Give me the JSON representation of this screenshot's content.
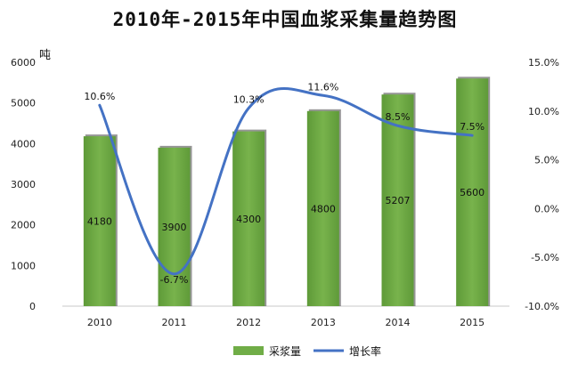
{
  "title": "2010年-2015年中国血浆采集量趋势图",
  "chart_data": {
    "type": "bar",
    "title": "2010年-2015年中国血浆采集量趋势图",
    "categories": [
      "2010",
      "2011",
      "2012",
      "2013",
      "2014",
      "2015"
    ],
    "series": [
      {
        "name": "采浆量",
        "type": "bar",
        "axis": "left",
        "values": [
          4180,
          3900,
          4300,
          4800,
          5207,
          5600
        ],
        "labels": [
          "4180",
          "3900",
          "4300",
          "4800",
          "5207",
          "5600"
        ],
        "color": "#70ad47"
      },
      {
        "name": "增长率",
        "type": "line",
        "axis": "right",
        "values": [
          10.6,
          -6.7,
          10.3,
          11.6,
          8.5,
          7.5
        ],
        "labels": [
          "10.6%",
          "-6.7%",
          "10.3%",
          "11.6%",
          "8.5%",
          "7.5%"
        ],
        "color": "#4472c4"
      }
    ],
    "y_left": {
      "unit": "吨",
      "ylim": [
        0,
        6000
      ],
      "ticks": [
        "0",
        "1000",
        "2000",
        "3000",
        "4000",
        "5000",
        "6000"
      ]
    },
    "y_right": {
      "ylim": [
        -10,
        15
      ],
      "ticks": [
        "-10.0%",
        "-5.0%",
        "0.0%",
        "5.0%",
        "10.0%",
        "15.0%"
      ]
    },
    "grid": false,
    "legend": {
      "position": "bottom",
      "items": [
        "采浆量",
        "增长率"
      ]
    }
  }
}
